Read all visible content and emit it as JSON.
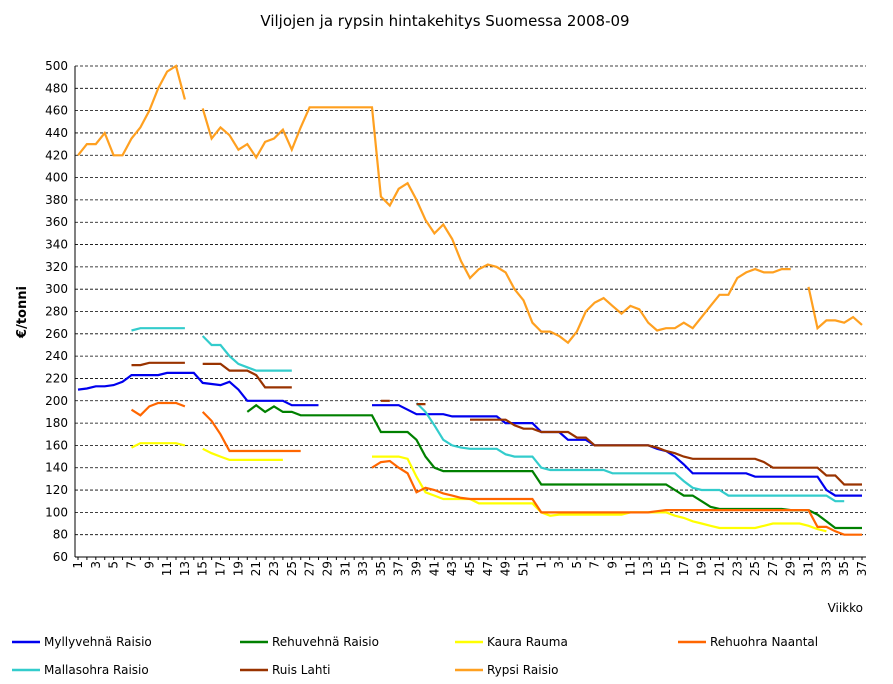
{
  "chart_data": {
    "type": "line",
    "title": "Viljojen ja rypsin hintakehitys Suomessa 2008-09",
    "y_label": "€/tonni",
    "x_label": "Viikko",
    "categories": [
      1,
      null,
      3,
      null,
      5,
      null,
      7,
      null,
      9,
      null,
      11,
      null,
      13,
      null,
      15,
      null,
      17,
      null,
      19,
      null,
      21,
      null,
      23,
      null,
      25,
      null,
      27,
      null,
      29,
      null,
      31,
      null,
      33,
      null,
      35,
      null,
      37,
      null,
      39,
      null,
      41,
      null,
      43,
      null,
      45,
      null,
      47,
      null,
      49,
      null,
      51,
      null,
      1,
      null,
      3,
      null,
      5,
      null,
      7,
      null,
      9,
      null,
      11,
      null,
      13,
      null,
      15,
      null,
      17,
      null,
      19,
      null,
      21,
      null,
      23,
      null,
      25,
      null,
      27,
      null,
      29,
      null,
      31,
      null,
      33,
      null,
      35,
      null,
      37
    ],
    "ylim": [
      60,
      500
    ],
    "yticks": [
      60,
      80,
      100,
      120,
      140,
      160,
      180,
      200,
      220,
      240,
      260,
      280,
      300,
      320,
      340,
      360,
      380,
      400,
      420,
      440,
      460,
      480,
      500
    ],
    "grid": true,
    "series": [
      {
        "name": "Myllyvehnä Raisio",
        "color": "#0000ee",
        "values": [
          210,
          211,
          213,
          213,
          214,
          217,
          223,
          223,
          223,
          223,
          225,
          225,
          225,
          225,
          216,
          215,
          214,
          217,
          210,
          200,
          200,
          200,
          200,
          200,
          196,
          196,
          196,
          196,
          null,
          null,
          null,
          null,
          null,
          196,
          196,
          196,
          196,
          192,
          188,
          188,
          188,
          188,
          186,
          186,
          186,
          186,
          186,
          186,
          180,
          180,
          180,
          180,
          172,
          172,
          172,
          165,
          165,
          165,
          160,
          160,
          160,
          160,
          160,
          160,
          160,
          157,
          155,
          150,
          143,
          135,
          135,
          135,
          135,
          135,
          135,
          135,
          132,
          132,
          132,
          132,
          132,
          132,
          132,
          132,
          120,
          115,
          115,
          115,
          115
        ]
      },
      {
        "name": "Rehuvehnä Raisio",
        "color": "#008000",
        "values": [
          null,
          null,
          null,
          null,
          null,
          null,
          null,
          null,
          null,
          null,
          null,
          null,
          null,
          null,
          null,
          null,
          null,
          null,
          null,
          190,
          196,
          190,
          195,
          190,
          190,
          187,
          187,
          187,
          187,
          187,
          187,
          187,
          187,
          187,
          172,
          172,
          172,
          172,
          165,
          150,
          140,
          137,
          137,
          137,
          137,
          137,
          137,
          137,
          137,
          137,
          137,
          137,
          125,
          125,
          125,
          125,
          125,
          125,
          125,
          125,
          125,
          125,
          125,
          125,
          125,
          125,
          125,
          120,
          115,
          115,
          110,
          105,
          103,
          103,
          103,
          103,
          103,
          103,
          103,
          103,
          102,
          102,
          102,
          98,
          92,
          86,
          86,
          86,
          86
        ]
      },
      {
        "name": "Kaura Rauma",
        "color": "#ffff00",
        "values": [
          null,
          null,
          null,
          null,
          null,
          null,
          158,
          162,
          162,
          162,
          162,
          162,
          160,
          null,
          157,
          153,
          150,
          147,
          147,
          147,
          147,
          147,
          147,
          147,
          null,
          null,
          null,
          null,
          null,
          null,
          null,
          null,
          null,
          150,
          150,
          150,
          150,
          148,
          132,
          118,
          115,
          112,
          112,
          112,
          112,
          108,
          108,
          108,
          108,
          108,
          108,
          108,
          100,
          97,
          98,
          98,
          98,
          98,
          98,
          98,
          98,
          98,
          100,
          100,
          100,
          100,
          100,
          97,
          95,
          92,
          90,
          88,
          86,
          86,
          86,
          86,
          86,
          88,
          90,
          90,
          90,
          90,
          88,
          85,
          83,
          null,
          null,
          null,
          null
        ]
      },
      {
        "name": "Rehuohra Naantal",
        "color": "#ff6600",
        "values": [
          null,
          null,
          null,
          null,
          null,
          null,
          192,
          187,
          195,
          198,
          198,
          198,
          195,
          null,
          190,
          182,
          170,
          155,
          155,
          155,
          155,
          155,
          155,
          155,
          155,
          155,
          null,
          null,
          null,
          null,
          null,
          null,
          null,
          140,
          145,
          146,
          140,
          135,
          118,
          122,
          120,
          117,
          115,
          113,
          112,
          112,
          112,
          112,
          112,
          112,
          112,
          112,
          100,
          100,
          100,
          100,
          100,
          100,
          100,
          100,
          100,
          100,
          100,
          100,
          100,
          101,
          102,
          102,
          102,
          102,
          102,
          102,
          102,
          102,
          102,
          102,
          102,
          102,
          102,
          102,
          102,
          102,
          102,
          87,
          87,
          83,
          80,
          80,
          80
        ]
      },
      {
        "name": "Mallasohra Raisio",
        "color": "#33cccc",
        "values": [
          null,
          null,
          null,
          null,
          null,
          null,
          263,
          265,
          265,
          265,
          265,
          265,
          265,
          null,
          258,
          250,
          250,
          240,
          233,
          230,
          227,
          227,
          227,
          227,
          227,
          null,
          null,
          null,
          null,
          null,
          null,
          null,
          null,
          null,
          null,
          null,
          null,
          null,
          198,
          190,
          178,
          165,
          160,
          158,
          157,
          157,
          157,
          157,
          152,
          150,
          150,
          150,
          140,
          138,
          138,
          138,
          138,
          138,
          138,
          138,
          135,
          135,
          135,
          135,
          135,
          135,
          135,
          135,
          128,
          122,
          120,
          120,
          120,
          115,
          115,
          115,
          115,
          115,
          115,
          115,
          115,
          115,
          115,
          115,
          115,
          110,
          110,
          null,
          null
        ]
      },
      {
        "name": "Ruis Lahti",
        "color": "#993300",
        "values": [
          null,
          null,
          null,
          null,
          null,
          null,
          232,
          232,
          234,
          234,
          234,
          234,
          234,
          null,
          233,
          233,
          233,
          227,
          227,
          227,
          223,
          212,
          212,
          212,
          212,
          null,
          null,
          null,
          null,
          null,
          null,
          null,
          null,
          null,
          200,
          200,
          null,
          null,
          197,
          197,
          null,
          null,
          null,
          null,
          183,
          183,
          183,
          183,
          183,
          178,
          175,
          175,
          172,
          172,
          172,
          172,
          167,
          167,
          160,
          160,
          160,
          160,
          160,
          160,
          160,
          158,
          155,
          153,
          150,
          148,
          148,
          148,
          148,
          148,
          148,
          148,
          148,
          145,
          140,
          140,
          140,
          140,
          140,
          140,
          133,
          133,
          125,
          125,
          125
        ]
      },
      {
        "name": "Rypsi Raisio",
        "color": "#ffa020",
        "values": [
          420,
          430,
          430,
          440,
          420,
          420,
          435,
          445,
          460,
          480,
          495,
          500,
          470,
          null,
          462,
          435,
          445,
          438,
          425,
          430,
          418,
          432,
          435,
          443,
          425,
          445,
          463,
          463,
          463,
          463,
          463,
          463,
          463,
          463,
          383,
          375,
          390,
          395,
          380,
          362,
          350,
          358,
          345,
          325,
          310,
          318,
          322,
          320,
          315,
          300,
          290,
          270,
          262,
          262,
          258,
          252,
          262,
          280,
          288,
          292,
          285,
          278,
          285,
          282,
          270,
          263,
          265,
          265,
          270,
          265,
          275,
          285,
          295,
          295,
          310,
          315,
          318,
          315,
          315,
          318,
          318,
          null,
          302,
          265,
          272,
          272,
          270,
          275,
          268
        ]
      }
    ]
  }
}
